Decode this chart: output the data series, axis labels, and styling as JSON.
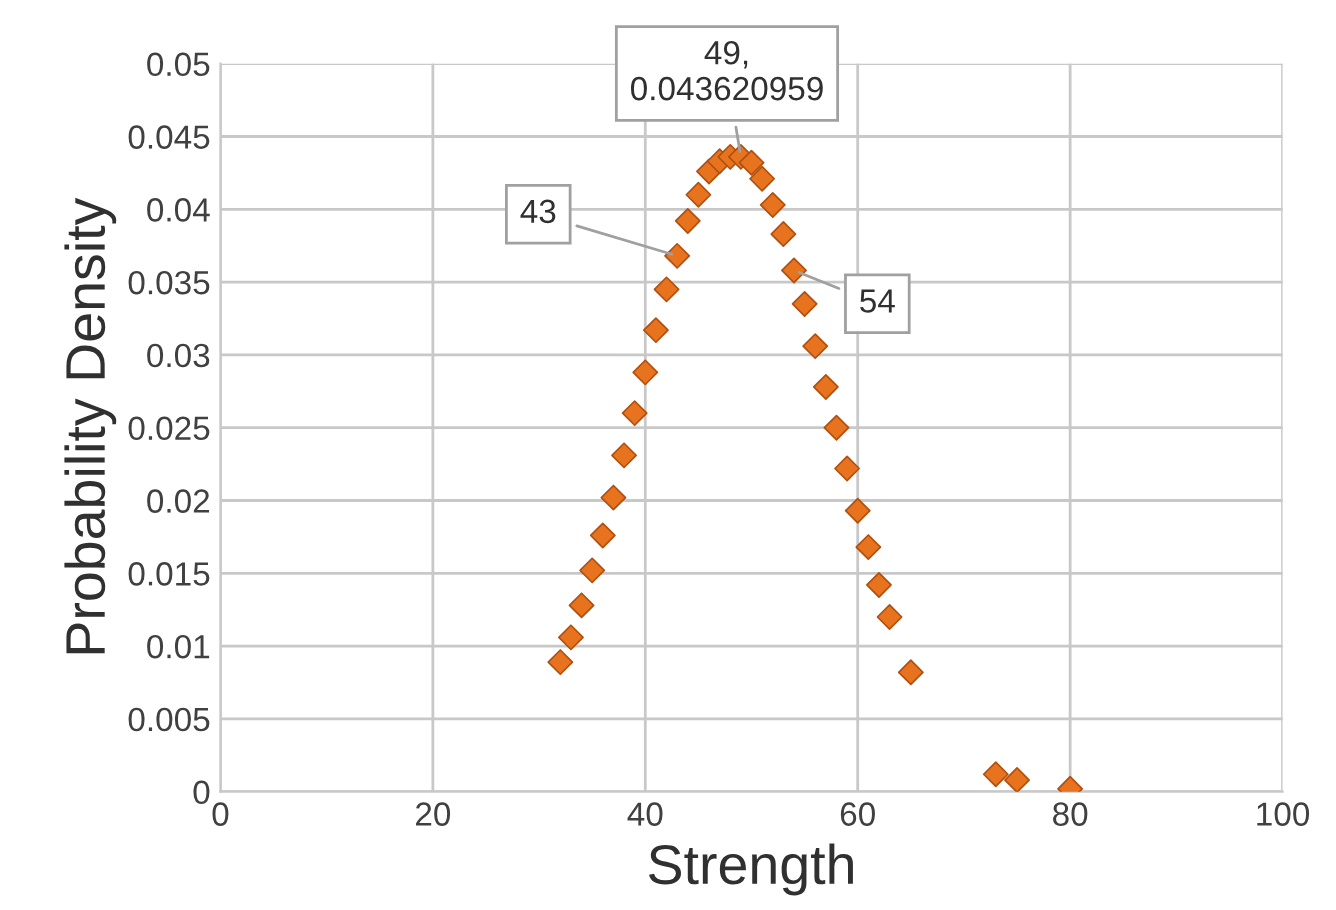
{
  "chart_data": {
    "type": "scatter",
    "xlabel": "Strength",
    "ylabel": "Probability Density",
    "x": [
      32,
      33,
      34,
      35,
      36,
      37,
      38,
      39,
      40,
      41,
      42,
      43,
      44,
      45,
      46,
      47,
      48,
      49,
      50,
      51,
      52,
      53,
      54,
      55,
      56,
      57,
      58,
      59,
      60,
      61,
      62,
      63,
      65,
      73,
      75,
      80
    ],
    "series": [
      {
        "color": "#e8731f",
        "values": [
          0.0089,
          0.0106,
          0.0128,
          0.0152,
          0.0176,
          0.0202,
          0.0231,
          0.026,
          0.0288,
          0.0317,
          0.0345,
          0.0368,
          0.0392,
          0.041,
          0.0426,
          0.0433,
          0.0436,
          0.0436,
          0.0432,
          0.0421,
          0.0403,
          0.0383,
          0.0358,
          0.0335,
          0.0306,
          0.0278,
          0.025,
          0.0222,
          0.0193,
          0.0168,
          0.0142,
          0.012,
          0.0082,
          0.0012,
          0.0008,
          0.0002
        ]
      }
    ],
    "marker": "diamond",
    "grid": true,
    "legend": false,
    "xlim": [
      0,
      100
    ],
    "xticks": [
      0,
      20,
      40,
      60,
      80,
      100
    ],
    "ylim": [
      0,
      0.05
    ],
    "yticks": [
      0,
      0.005,
      0.01,
      0.015,
      0.02,
      0.025,
      0.03,
      0.035,
      0.04,
      0.045,
      0.05
    ],
    "annotations": [
      {
        "text": "49,\n0.043620959",
        "x": 49,
        "y": 0.0436
      },
      {
        "text": "43",
        "x": 43,
        "y": 0.0368
      },
      {
        "text": "54",
        "x": 54,
        "y": 0.0358
      }
    ]
  }
}
